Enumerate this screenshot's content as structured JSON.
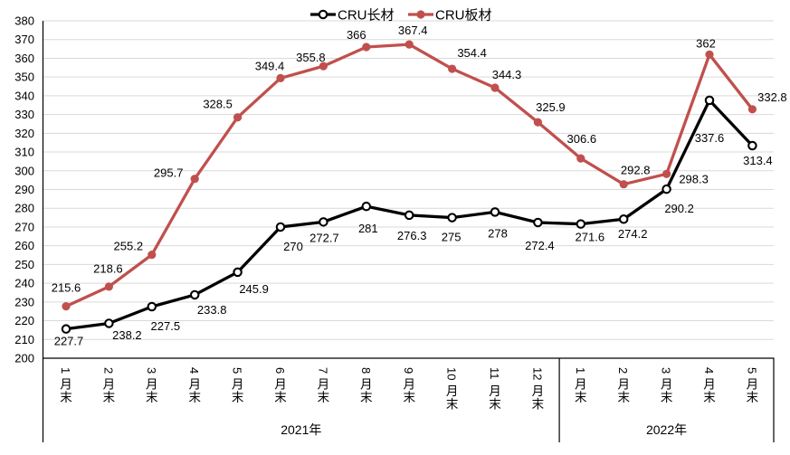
{
  "chart_data": {
    "type": "line",
    "x_categories": [
      "1月末",
      "2月末",
      "3月末",
      "4月末",
      "5月末",
      "6月末",
      "7月末",
      "8月末",
      "9月末",
      "10月末",
      "11月末",
      "12月末",
      "1月末",
      "2月末",
      "3月末",
      "4月末",
      "5月末"
    ],
    "x_groups": [
      {
        "label": "2021年",
        "span": 12
      },
      {
        "label": "2022年",
        "span": 5
      }
    ],
    "ylim": [
      200,
      380
    ],
    "ytick_step": 10,
    "y_ticks": [
      200,
      210,
      220,
      230,
      240,
      250,
      260,
      270,
      280,
      290,
      300,
      310,
      320,
      330,
      340,
      350,
      360,
      370,
      380
    ],
    "grid": true,
    "legend_position": "top-center",
    "colors": {
      "grid": "#D9D9D9",
      "axis": "#000000",
      "background": "#FFFFFF"
    },
    "series": [
      {
        "name": "CRU长材",
        "color": "#000000",
        "marker": "open-circle",
        "values": [
          215.6,
          218.6,
          227.5,
          233.8,
          245.9,
          270,
          272.7,
          281,
          276.3,
          275,
          278,
          272.4,
          271.6,
          274.2,
          290.2,
          337.6,
          313.4
        ],
        "label_offsets": [
          [
            0,
            -41
          ],
          [
            -1,
            -56
          ],
          [
            15,
            26
          ],
          [
            19,
            21
          ],
          [
            18,
            23
          ],
          [
            14,
            26
          ],
          [
            1,
            22
          ],
          [
            2,
            29
          ],
          [
            3,
            27
          ],
          [
            -1,
            26
          ],
          [
            3,
            28
          ],
          [
            2,
            30
          ],
          [
            10,
            19
          ],
          [
            10,
            21
          ],
          [
            14,
            26
          ],
          [
            0,
            46
          ],
          [
            6,
            21
          ]
        ]
      },
      {
        "name": "CRU板材",
        "color": "#C0504D",
        "marker": "filled-circle",
        "values": [
          227.7,
          238.2,
          255.2,
          295.7,
          328.5,
          349.4,
          355.8,
          366,
          367.4,
          354.4,
          344.3,
          325.9,
          306.6,
          292.8,
          298.3,
          362,
          332.8
        ],
        "label_offsets": [
          [
            3,
            43
          ],
          [
            20,
            58
          ],
          [
            -26,
            -5
          ],
          [
            -29,
            -2
          ],
          [
            -22,
            -10
          ],
          [
            -12,
            -9
          ],
          [
            -14,
            -5
          ],
          [
            -11,
            -9
          ],
          [
            4,
            -11
          ],
          [
            22,
            -13
          ],
          [
            13,
            -10
          ],
          [
            14,
            -12
          ],
          [
            1,
            -17
          ],
          [
            13,
            -11
          ],
          [
            30,
            10
          ],
          [
            -4,
            -8
          ],
          [
            22,
            -9
          ]
        ]
      }
    ]
  }
}
